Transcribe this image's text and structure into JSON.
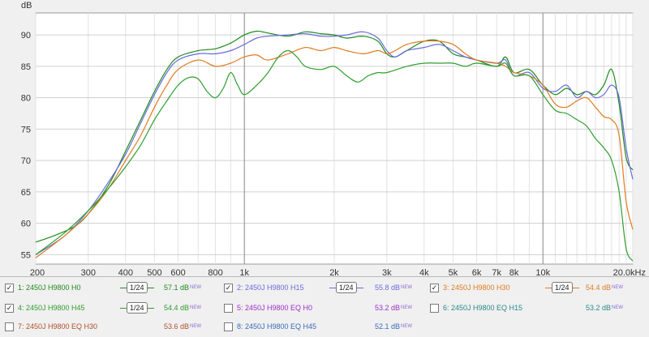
{
  "chart_data": {
    "type": "line",
    "title": "",
    "xlabel": "",
    "ylabel": "dB",
    "x_scale": "log",
    "xlim": [
      200,
      20000
    ],
    "ylim": [
      53.5,
      93.5
    ],
    "grid": true,
    "y_ticks": [
      "90",
      "85",
      "80",
      "75",
      "70",
      "65",
      "60",
      "55"
    ],
    "x_ticks": [
      {
        "v": 200,
        "t": "200"
      },
      {
        "v": 300,
        "t": "300"
      },
      {
        "v": 400,
        "t": "400"
      },
      {
        "v": 500,
        "t": "500"
      },
      {
        "v": 600,
        "t": "600"
      },
      {
        "v": 800,
        "t": "800"
      },
      {
        "v": 1000,
        "t": "1k"
      },
      {
        "v": 2000,
        "t": "2k"
      },
      {
        "v": 3000,
        "t": "3k"
      },
      {
        "v": 4000,
        "t": "4k"
      },
      {
        "v": 5000,
        "t": "5k"
      },
      {
        "v": 6000,
        "t": "6k"
      },
      {
        "v": 7000,
        "t": "7k"
      },
      {
        "v": 8000,
        "t": "8k"
      },
      {
        "v": 10000,
        "t": "10k"
      },
      {
        "v": 20000,
        "t": "20.0kHz"
      }
    ],
    "series": [
      {
        "name": "2450J H9800 H0",
        "color": "#1e8a1e",
        "points": [
          [
            200,
            57.0
          ],
          [
            230,
            58.0
          ],
          [
            270,
            59.5
          ],
          [
            300,
            61.5
          ],
          [
            350,
            66.0
          ],
          [
            400,
            71.5
          ],
          [
            450,
            76.5
          ],
          [
            500,
            81.0
          ],
          [
            550,
            84.5
          ],
          [
            600,
            86.5
          ],
          [
            700,
            87.5
          ],
          [
            800,
            87.8
          ],
          [
            900,
            88.7
          ],
          [
            1000,
            90.0
          ],
          [
            1100,
            90.6
          ],
          [
            1200,
            90.3
          ],
          [
            1400,
            89.8
          ],
          [
            1600,
            90.5
          ],
          [
            1800,
            90.2
          ],
          [
            2000,
            90.0
          ],
          [
            2200,
            89.5
          ],
          [
            2500,
            89.8
          ],
          [
            2800,
            89.0
          ],
          [
            3000,
            87.0
          ],
          [
            3200,
            86.5
          ],
          [
            3500,
            87.5
          ],
          [
            4000,
            89.0
          ],
          [
            4500,
            89.0
          ],
          [
            5000,
            87.0
          ],
          [
            5500,
            86.5
          ],
          [
            6000,
            86.0
          ],
          [
            7000,
            85.0
          ],
          [
            7500,
            86.5
          ],
          [
            8000,
            84.0
          ],
          [
            9000,
            84.5
          ],
          [
            10000,
            82.0
          ],
          [
            11000,
            80.5
          ],
          [
            12000,
            81.5
          ],
          [
            13000,
            80.5
          ],
          [
            14000,
            81.0
          ],
          [
            15000,
            80.5
          ],
          [
            16000,
            82.0
          ],
          [
            17000,
            84.5
          ],
          [
            18000,
            79.0
          ],
          [
            19000,
            70.5
          ],
          [
            20000,
            68.5
          ]
        ]
      },
      {
        "name": "2450J H9800 H15",
        "color": "#6a6adc",
        "points": [
          [
            200,
            55.0
          ],
          [
            250,
            58.0
          ],
          [
            300,
            62.0
          ],
          [
            350,
            66.5
          ],
          [
            400,
            71.0
          ],
          [
            450,
            76.0
          ],
          [
            500,
            80.5
          ],
          [
            550,
            84.0
          ],
          [
            600,
            86.0
          ],
          [
            700,
            87.0
          ],
          [
            800,
            87.0
          ],
          [
            900,
            87.5
          ],
          [
            1000,
            88.5
          ],
          [
            1100,
            89.5
          ],
          [
            1200,
            89.8
          ],
          [
            1400,
            90.0
          ],
          [
            1600,
            90.2
          ],
          [
            1800,
            89.8
          ],
          [
            2000,
            89.8
          ],
          [
            2200,
            90.0
          ],
          [
            2500,
            90.5
          ],
          [
            2800,
            89.5
          ],
          [
            3000,
            87.5
          ],
          [
            3200,
            86.5
          ],
          [
            3500,
            87.5
          ],
          [
            4000,
            88.0
          ],
          [
            4500,
            88.5
          ],
          [
            5000,
            87.5
          ],
          [
            5500,
            86.5
          ],
          [
            6000,
            86.0
          ],
          [
            7000,
            85.5
          ],
          [
            7500,
            86.0
          ],
          [
            8000,
            83.5
          ],
          [
            9000,
            84.0
          ],
          [
            10000,
            81.5
          ],
          [
            11000,
            81.0
          ],
          [
            12000,
            82.0
          ],
          [
            13000,
            80.0
          ],
          [
            14000,
            81.0
          ],
          [
            15000,
            80.0
          ],
          [
            16000,
            80.5
          ],
          [
            17000,
            82.0
          ],
          [
            18000,
            80.0
          ],
          [
            19000,
            72.0
          ],
          [
            20000,
            67.0
          ]
        ]
      },
      {
        "name": "2450J H9800 H30",
        "color": "#e07b20",
        "points": [
          [
            200,
            54.5
          ],
          [
            250,
            58.0
          ],
          [
            300,
            61.5
          ],
          [
            350,
            65.5
          ],
          [
            400,
            70.0
          ],
          [
            450,
            74.0
          ],
          [
            500,
            78.5
          ],
          [
            550,
            82.0
          ],
          [
            600,
            84.5
          ],
          [
            700,
            86.0
          ],
          [
            800,
            85.0
          ],
          [
            900,
            85.5
          ],
          [
            1000,
            86.5
          ],
          [
            1100,
            86.8
          ],
          [
            1200,
            86.0
          ],
          [
            1400,
            87.0
          ],
          [
            1600,
            88.0
          ],
          [
            1800,
            87.5
          ],
          [
            2000,
            88.0
          ],
          [
            2200,
            87.5
          ],
          [
            2500,
            87.0
          ],
          [
            2800,
            87.5
          ],
          [
            3000,
            87.0
          ],
          [
            3200,
            87.5
          ],
          [
            3500,
            88.5
          ],
          [
            4000,
            89.0
          ],
          [
            4500,
            89.0
          ],
          [
            5000,
            88.5
          ],
          [
            5500,
            87.0
          ],
          [
            6000,
            86.0
          ],
          [
            7000,
            85.5
          ],
          [
            7500,
            85.0
          ],
          [
            8000,
            84.0
          ],
          [
            9000,
            83.5
          ],
          [
            10000,
            82.0
          ],
          [
            11000,
            79.0
          ],
          [
            12000,
            78.5
          ],
          [
            13000,
            79.5
          ],
          [
            14000,
            80.0
          ],
          [
            15000,
            78.5
          ],
          [
            16000,
            77.0
          ],
          [
            17000,
            76.5
          ],
          [
            18000,
            74.0
          ],
          [
            19000,
            63.5
          ],
          [
            20000,
            59.0
          ]
        ]
      },
      {
        "name": "2450J H9800 H45",
        "color": "#2e9e2e",
        "points": [
          [
            200,
            55.0
          ],
          [
            250,
            58.5
          ],
          [
            300,
            62.0
          ],
          [
            350,
            65.5
          ],
          [
            400,
            69.0
          ],
          [
            450,
            72.5
          ],
          [
            500,
            76.5
          ],
          [
            550,
            79.5
          ],
          [
            600,
            82.0
          ],
          [
            650,
            83.2
          ],
          [
            700,
            83.0
          ],
          [
            750,
            81.0
          ],
          [
            800,
            80.0
          ],
          [
            850,
            81.5
          ],
          [
            900,
            84.0
          ],
          [
            950,
            82.0
          ],
          [
            1000,
            80.5
          ],
          [
            1100,
            82.0
          ],
          [
            1200,
            84.0
          ],
          [
            1300,
            86.5
          ],
          [
            1400,
            87.5
          ],
          [
            1500,
            86.5
          ],
          [
            1600,
            85.0
          ],
          [
            1800,
            84.5
          ],
          [
            2000,
            85.0
          ],
          [
            2200,
            83.5
          ],
          [
            2400,
            82.5
          ],
          [
            2600,
            83.5
          ],
          [
            2800,
            84.0
          ],
          [
            3000,
            84.0
          ],
          [
            3500,
            85.0
          ],
          [
            4000,
            85.5
          ],
          [
            4500,
            85.5
          ],
          [
            5000,
            85.5
          ],
          [
            5500,
            85.0
          ],
          [
            6000,
            85.5
          ],
          [
            7000,
            85.0
          ],
          [
            7500,
            85.5
          ],
          [
            8000,
            83.5
          ],
          [
            9000,
            83.5
          ],
          [
            10000,
            80.5
          ],
          [
            11000,
            78.0
          ],
          [
            12000,
            77.5
          ],
          [
            13000,
            76.5
          ],
          [
            14000,
            75.5
          ],
          [
            15000,
            73.5
          ],
          [
            16000,
            72.0
          ],
          [
            17000,
            70.0
          ],
          [
            18000,
            65.0
          ],
          [
            19000,
            56.0
          ],
          [
            20000,
            54.0
          ]
        ]
      }
    ]
  },
  "legend": [
    {
      "row": 0,
      "checked": true,
      "label": "1: 2450J H9800 H0",
      "color": "#1e8a1e",
      "smoothing": "1/24",
      "level": "57.1 dB",
      "badge": "NEW"
    },
    {
      "row": 0,
      "checked": true,
      "label": "2: 2450J H9800 H15",
      "color": "#6a6adc",
      "smoothing": "1/24",
      "level": "55.8 dB",
      "badge": "NEW"
    },
    {
      "row": 0,
      "checked": true,
      "label": "3: 2450J H9800 H30",
      "color": "#e07b20",
      "smoothing": "1/24",
      "level": "54.4 dB",
      "badge": "NEW"
    },
    {
      "row": 1,
      "checked": true,
      "label": "4: 2450J H9800 H45",
      "color": "#2e9e2e",
      "smoothing": "1/24",
      "level": "54.4 dB",
      "badge": "NEW"
    },
    {
      "row": 1,
      "checked": false,
      "label": "5: 2450J H9800 EQ H0",
      "color": "#9b30c8",
      "smoothing": "",
      "level": "53.2 dB",
      "badge": "NEW"
    },
    {
      "row": 1,
      "checked": false,
      "label": "6: 2450J H9800 EQ H15",
      "color": "#2a8a8a",
      "smoothing": "",
      "level": "53.2 dB",
      "badge": "NEW"
    },
    {
      "row": 2,
      "checked": false,
      "label": "7: 2450J H9800 EQ H30",
      "color": "#b0502a",
      "smoothing": "",
      "level": "53.6 dB",
      "badge": "NEW"
    },
    {
      "row": 2,
      "checked": false,
      "label": "8: 2450J H9800 EQ H45",
      "color": "#3a6ab8",
      "smoothing": "",
      "level": "52.1 dB",
      "badge": "NEW"
    }
  ]
}
